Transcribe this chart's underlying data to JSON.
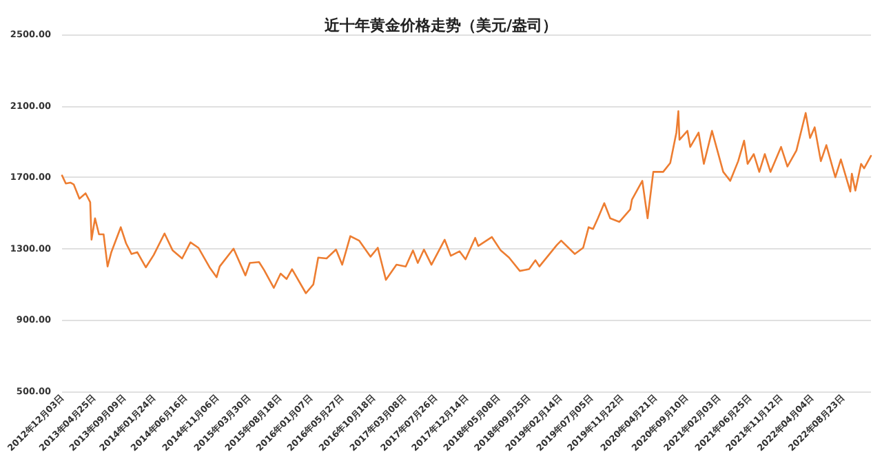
{
  "chart_data": {
    "type": "line",
    "title": "近十年黄金价格走势（美元/盎司）",
    "x": [
      "2012-12-03",
      "2012-12-20",
      "2013-01-10",
      "2013-01-25",
      "2013-02-20",
      "2013-03-20",
      "2013-04-10",
      "2013-04-16",
      "2013-05-02",
      "2013-05-20",
      "2013-06-10",
      "2013-06-28",
      "2013-07-15",
      "2013-08-27",
      "2013-09-20",
      "2013-10-15",
      "2013-11-10",
      "2013-12-19",
      "2014-01-24",
      "2014-03-14",
      "2014-04-20",
      "2014-06-02",
      "2014-07-10",
      "2014-08-15",
      "2014-10-05",
      "2014-11-06",
      "2014-11-20",
      "2015-01-22",
      "2015-03-17",
      "2015-04-06",
      "2015-05-18",
      "2015-06-10",
      "2015-07-24",
      "2015-08-24",
      "2015-09-20",
      "2015-10-15",
      "2015-12-17",
      "2016-01-20",
      "2016-02-11",
      "2016-03-20",
      "2016-05-02",
      "2016-05-30",
      "2016-07-06",
      "2016-08-15",
      "2016-10-06",
      "2016-11-08",
      "2016-12-15",
      "2017-02-01",
      "2017-03-15",
      "2017-04-17",
      "2017-05-09",
      "2017-06-06",
      "2017-07-10",
      "2017-09-08",
      "2017-10-06",
      "2017-11-15",
      "2017-12-12",
      "2018-01-25",
      "2018-02-08",
      "2018-04-11",
      "2018-05-21",
      "2018-06-28",
      "2018-08-16",
      "2018-09-27",
      "2018-10-26",
      "2018-11-13",
      "2019-01-31",
      "2019-02-20",
      "2019-04-23",
      "2019-05-31",
      "2019-06-25",
      "2019-07-15",
      "2019-08-06",
      "2019-09-04",
      "2019-10-01",
      "2019-11-12",
      "2019-12-31",
      "2020-01-08",
      "2020-02-24",
      "2020-03-19",
      "2020-04-14",
      "2020-05-29",
      "2020-06-30",
      "2020-07-28",
      "2020-08-06",
      "2020-08-11",
      "2020-09-16",
      "2020-09-29",
      "2020-11-06",
      "2020-11-30",
      "2021-01-06",
      "2021-02-26",
      "2021-03-30",
      "2021-05-05",
      "2021-06-01",
      "2021-06-17",
      "2021-07-15",
      "2021-08-09",
      "2021-09-03",
      "2021-09-29",
      "2021-11-16",
      "2021-12-15",
      "2022-01-25",
      "2022-03-08",
      "2022-03-28",
      "2022-04-18",
      "2022-05-16",
      "2022-06-10",
      "2022-07-21",
      "2022-08-15",
      "2022-09-27",
      "2022-10-04",
      "2022-10-20",
      "2022-11-15",
      "2022-11-29",
      "2022-12-30"
    ],
    "series": [
      {
        "color": "#ed7d31",
        "values": [
          1710,
          1665,
          1670,
          1660,
          1580,
          1610,
          1560,
          1350,
          1470,
          1380,
          1380,
          1200,
          1280,
          1420,
          1330,
          1270,
          1280,
          1195,
          1265,
          1385,
          1290,
          1245,
          1335,
          1305,
          1195,
          1140,
          1200,
          1300,
          1150,
          1220,
          1225,
          1180,
          1080,
          1160,
          1130,
          1185,
          1050,
          1100,
          1250,
          1245,
          1295,
          1210,
          1370,
          1345,
          1255,
          1305,
          1125,
          1210,
          1200,
          1290,
          1220,
          1295,
          1210,
          1350,
          1260,
          1285,
          1240,
          1360,
          1315,
          1365,
          1290,
          1250,
          1175,
          1185,
          1235,
          1200,
          1320,
          1345,
          1270,
          1305,
          1420,
          1410,
          1470,
          1555,
          1470,
          1450,
          1520,
          1575,
          1680,
          1470,
          1730,
          1730,
          1780,
          1950,
          2070,
          1910,
          1960,
          1870,
          1950,
          1775,
          1960,
          1730,
          1680,
          1790,
          1905,
          1775,
          1830,
          1730,
          1830,
          1730,
          1870,
          1760,
          1850,
          2060,
          1920,
          1980,
          1790,
          1880,
          1700,
          1800,
          1620,
          1720,
          1625,
          1775,
          1750,
          1820
        ]
      }
    ],
    "xlim": [
      "2012-12-03",
      "2022-12-30"
    ],
    "xticks": [
      {
        "value": "2012-12-03",
        "label": "2012年12月03日"
      },
      {
        "value": "2013-04-25",
        "label": "2013年04月25日"
      },
      {
        "value": "2013-09-09",
        "label": "2013年09月09日"
      },
      {
        "value": "2014-01-24",
        "label": "2014年01月24日"
      },
      {
        "value": "2014-06-16",
        "label": "2014年06月16日"
      },
      {
        "value": "2014-11-06",
        "label": "2014年11月06日"
      },
      {
        "value": "2015-03-30",
        "label": "2015年03月30日"
      },
      {
        "value": "2015-08-18",
        "label": "2015年08月18日"
      },
      {
        "value": "2016-01-07",
        "label": "2016年01月07日"
      },
      {
        "value": "2016-05-27",
        "label": "2016年05月27日"
      },
      {
        "value": "2016-10-18",
        "label": "2016年10月18日"
      },
      {
        "value": "2017-03-08",
        "label": "2017年03月08日"
      },
      {
        "value": "2017-07-26",
        "label": "2017年07月26日"
      },
      {
        "value": "2017-12-14",
        "label": "2017年12月14日"
      },
      {
        "value": "2018-05-08",
        "label": "2018年05月08日"
      },
      {
        "value": "2018-09-25",
        "label": "2018年09月25日"
      },
      {
        "value": "2019-02-14",
        "label": "2019年02月14日"
      },
      {
        "value": "2019-07-05",
        "label": "2019年07月05日"
      },
      {
        "value": "2019-11-22",
        "label": "2019年11月22日"
      },
      {
        "value": "2020-04-21",
        "label": "2020年04月21日"
      },
      {
        "value": "2020-09-10",
        "label": "2020年09月10日"
      },
      {
        "value": "2021-02-03",
        "label": "2021年02月03日"
      },
      {
        "value": "2021-06-25",
        "label": "2021年06月25日"
      },
      {
        "value": "2021-11-12",
        "label": "2021年11月12日"
      },
      {
        "value": "2022-04-04",
        "label": "2022年04月04日"
      },
      {
        "value": "2022-08-23",
        "label": "2022年08月23日"
      }
    ],
    "ylim": [
      500,
      2500
    ],
    "yticks": [
      {
        "value": 500,
        "label": "500.00"
      },
      {
        "value": 900,
        "label": "900.00"
      },
      {
        "value": 1300,
        "label": "1300.00"
      },
      {
        "value": 1700,
        "label": "1700.00"
      },
      {
        "value": 2100,
        "label": "2100.00"
      },
      {
        "value": 2500,
        "label": "2500.00"
      }
    ],
    "grid": "y",
    "marker": "none"
  }
}
